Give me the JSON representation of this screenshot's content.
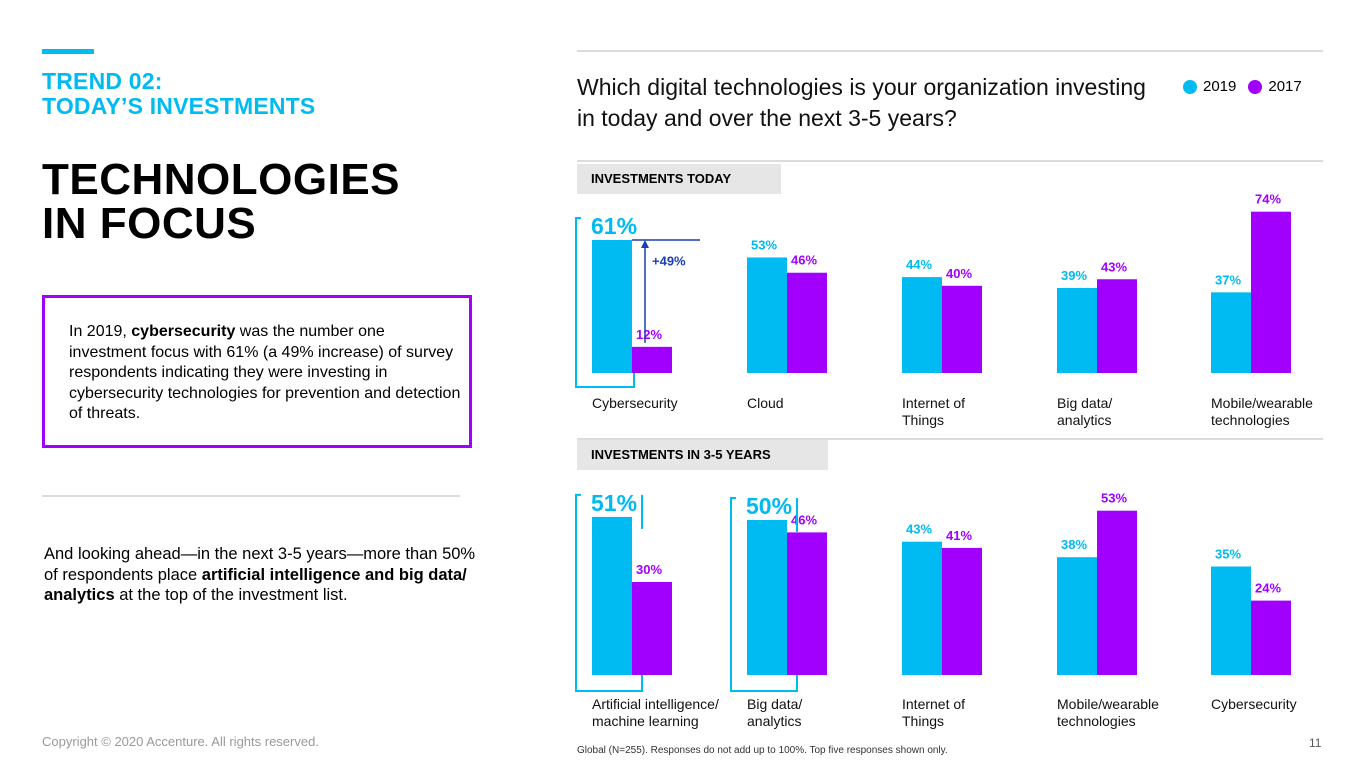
{
  "header": {
    "trend_line1": "TREND 02:",
    "trend_line2": "TODAY’S INVESTMENTS",
    "title_line1": "TECHNOLOGIES",
    "title_line2": "IN FOCUS"
  },
  "callout": {
    "p1": "In 2019, ",
    "bold1": "cybersecurity",
    "p2": " was the number one investment focus with 61% (a 49% increase) of survey respondents indicating they were investing in cybersecurity technologies for prevention and detection of threats."
  },
  "ahead": {
    "p1": "And looking ahead—in the next 3-5 years—more than 50% of respondents place ",
    "bold1": "artificial intelligence and big data/ analytics",
    "p2": " at the top of the investment list."
  },
  "footer": {
    "copyright": "Copyright © 2020 Accenture. All rights reserved.",
    "page_number": "11",
    "footnote": "Global (N=255). Responses do not add up to 100%. Top five responses shown only."
  },
  "question": "Which digital technologies is your organization investing in today and over the next 3-5 years?",
  "legend": [
    {
      "label": "2019",
      "color": "#00baf2"
    },
    {
      "label": "2017",
      "color": "#a100ff"
    }
  ],
  "colors": {
    "series_2019": "#00baf2",
    "series_2017": "#a100ff",
    "highlight": "#00baf2",
    "arrow": "#1a3fb0"
  },
  "chart_data": [
    {
      "type": "bar",
      "title": "INVESTMENTS TODAY",
      "categories": [
        [
          "Cybersecurity"
        ],
        [
          "Cloud"
        ],
        [
          "Internet of",
          "Things"
        ],
        [
          "Big data/",
          "analytics"
        ],
        [
          "Mobile/wearable",
          "technologies"
        ]
      ],
      "series": [
        {
          "name": "2019",
          "values": [
            61,
            53,
            44,
            39,
            37
          ]
        },
        {
          "name": "2017",
          "values": [
            12,
            46,
            40,
            43,
            74
          ]
        }
      ],
      "highlight": {
        "category_index": 0,
        "annotation": "+49%"
      },
      "ylim": [
        0,
        74
      ]
    },
    {
      "type": "bar",
      "title": "INVESTMENTS IN 3-5 YEARS",
      "categories": [
        [
          "Artificial intelligence/",
          "machine learning"
        ],
        [
          "Big data/",
          "analytics"
        ],
        [
          "Internet of",
          "Things"
        ],
        [
          "Mobile/wearable",
          "technologies"
        ],
        [
          "Cybersecurity"
        ]
      ],
      "series": [
        {
          "name": "2019",
          "values": [
            51,
            50,
            43,
            38,
            35
          ]
        },
        {
          "name": "2017",
          "values": [
            30,
            46,
            41,
            53,
            24
          ]
        }
      ],
      "highlight": {
        "category_indices": [
          0,
          1
        ]
      },
      "ylim": [
        0,
        53
      ]
    }
  ]
}
